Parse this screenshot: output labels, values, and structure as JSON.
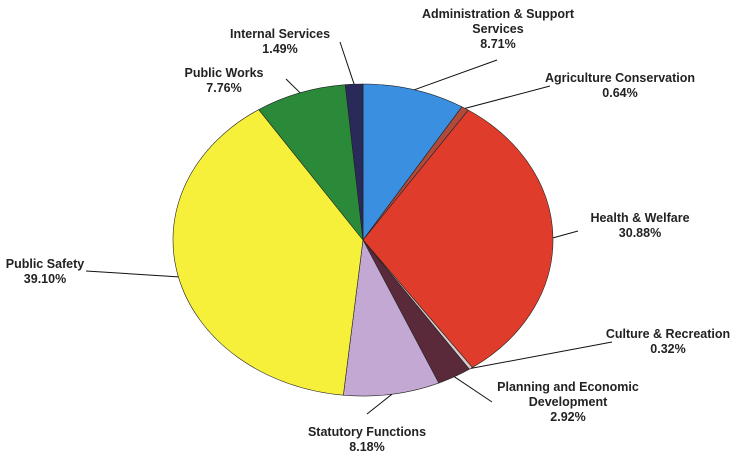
{
  "chart_data": {
    "type": "pie",
    "title": "",
    "slices": [
      {
        "name": "Administration & Support Services",
        "label_lines": [
          "Administration & Support",
          "Services"
        ],
        "value": 8.71,
        "value_label": "8.71%",
        "color": "#3a8fe0"
      },
      {
        "name": "Agriculture Conservation",
        "label_lines": [
          "Agriculture Conservation"
        ],
        "value": 0.64,
        "value_label": "0.64%",
        "color": "#b04a3a"
      },
      {
        "name": "Health & Welfare",
        "label_lines": [
          "Health & Welfare"
        ],
        "value": 30.88,
        "value_label": "30.88%",
        "color": "#e03c2c"
      },
      {
        "name": "Culture & Recreation",
        "label_lines": [
          "Culture & Recreation"
        ],
        "value": 0.32,
        "value_label": "0.32%",
        "color": "#d8c8c8"
      },
      {
        "name": "Planning and Economic Development",
        "label_lines": [
          "Planning and Economic",
          "Development"
        ],
        "value": 2.92,
        "value_label": "2.92%",
        "color": "#5a2a3a"
      },
      {
        "name": "Statutory Functions",
        "label_lines": [
          "Statutory Functions"
        ],
        "value": 8.18,
        "value_label": "8.18%",
        "color": "#c4a8d4"
      },
      {
        "name": "Public Safety",
        "label_lines": [
          "Public Safety"
        ],
        "value": 39.1,
        "value_label": "39.10%",
        "color": "#f6f03a"
      },
      {
        "name": "Public Works",
        "label_lines": [
          "Public Works"
        ],
        "value": 7.76,
        "value_label": "7.76%",
        "color": "#2a8a3a"
      },
      {
        "name": "Internal Services",
        "label_lines": [
          "Internal Services"
        ],
        "value": 1.49,
        "value_label": "1.49%",
        "color": "#2a2a5a"
      }
    ],
    "legend": "none",
    "labels": "outside with leader lines"
  }
}
